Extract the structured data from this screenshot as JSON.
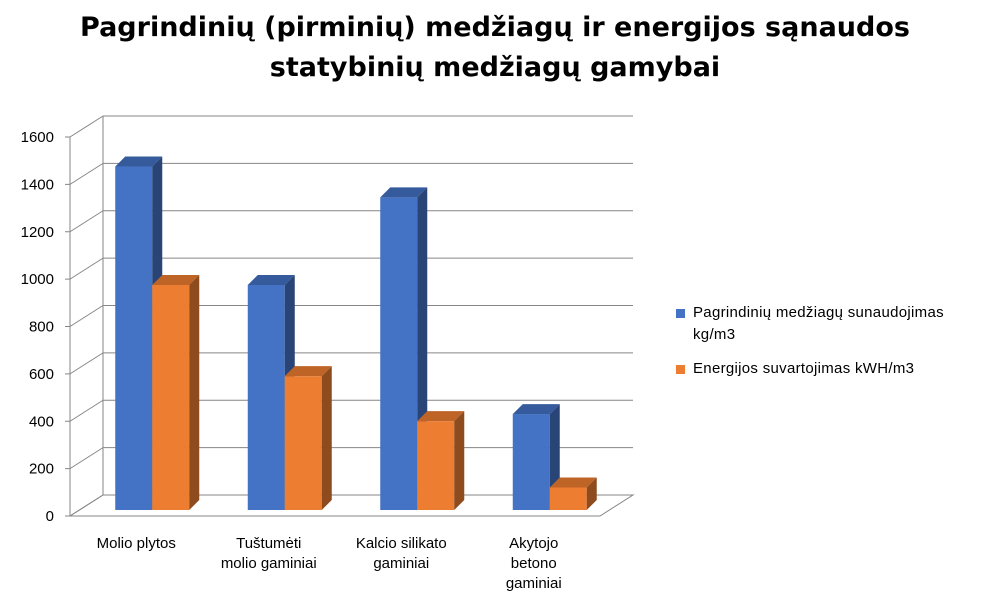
{
  "chart_data": {
    "type": "bar",
    "title_lines": [
      "Pagrindinių  (pirminių)  medžiagų  ir energijos  sąnaudos",
      "statybinių  medžiagų  gamybai"
    ],
    "categories": [
      [
        "Molio plytos"
      ],
      [
        "Tuštumėti",
        "molio gaminiai"
      ],
      [
        "Kalcio silikato",
        "gaminiai"
      ],
      [
        "Akytojo",
        "betono",
        "gaminiai"
      ]
    ],
    "series": [
      {
        "name": "Pagrindinių medžiagų sunaudojimas kg/m3",
        "color": "#4472c4",
        "values": [
          1450,
          950,
          1320,
          405
        ]
      },
      {
        "name": "Energijos suvartojimas kWH/m3",
        "color": "#ed7d31",
        "values": [
          950,
          565,
          375,
          95
        ]
      }
    ],
    "ylim": [
      0,
      1600
    ],
    "yticks": [
      0,
      200,
      400,
      600,
      800,
      1000,
      1200,
      1400,
      1600
    ],
    "grid": true,
    "legend_position": "right",
    "projection": "3d"
  }
}
